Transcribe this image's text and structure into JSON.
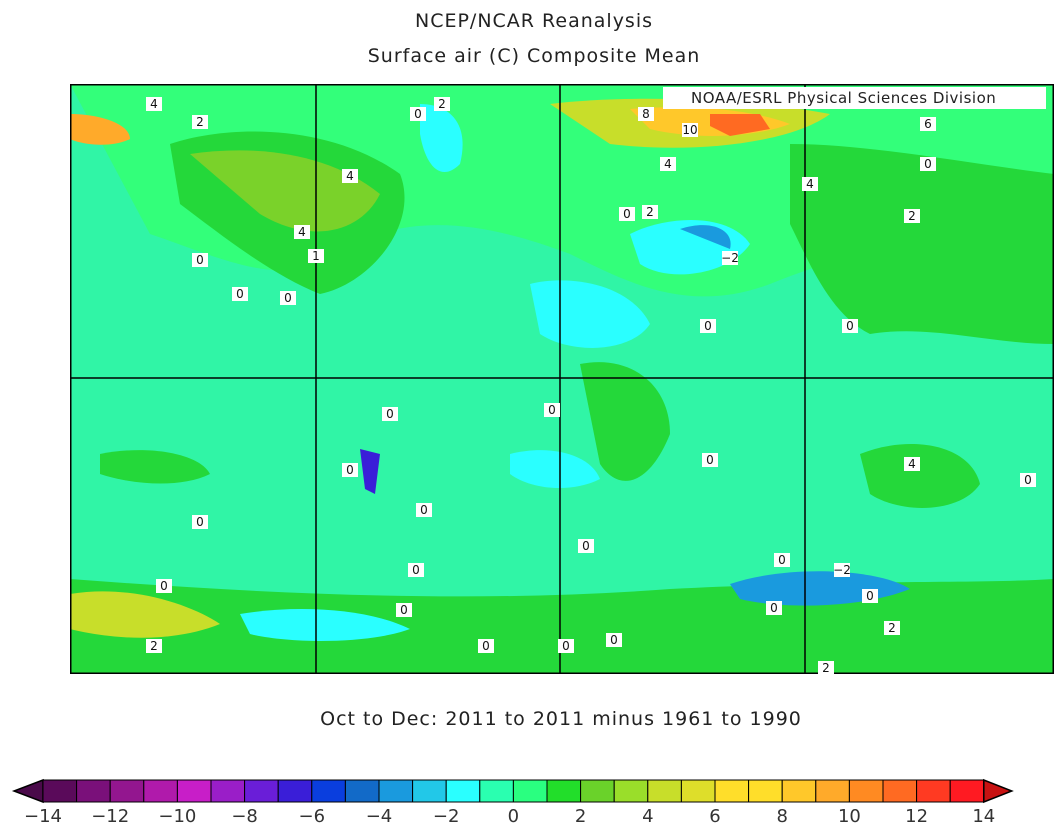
{
  "title": "NCEP/NCAR Reanalysis",
  "subtitle": "Surface air (C) Composite Mean",
  "credit": "NOAA/ESRL Physical Sciences Division",
  "period": "Oct to Dec: 2011 to 2011 minus 1961 to 1990",
  "colorbar": {
    "min": -14,
    "max": 14,
    "step": 1,
    "tick_labels": [
      "−14",
      "−12",
      "−10",
      "−8",
      "−6",
      "−4",
      "−2",
      "0",
      "2",
      "4",
      "6",
      "8",
      "10",
      "12",
      "14"
    ],
    "colors": [
      "#5a0a5a",
      "#7a107a",
      "#93168f",
      "#b01aab",
      "#c81ec8",
      "#9a1ec8",
      "#6a1ed8",
      "#3a1ed8",
      "#0a3ede",
      "#126ac8",
      "#1a9ade",
      "#22c8e8",
      "#2affff",
      "#2affb0",
      "#2aff80",
      "#22de2a",
      "#6ad22a",
      "#9ade2a",
      "#c8de2a",
      "#dede2a",
      "#ffde2a",
      "#ffde2a",
      "#ffc82a",
      "#ffaa2a",
      "#ff8a22",
      "#ff6a22",
      "#ff3a22",
      "#ff1a22"
    ],
    "under_color": "#4a0a4a",
    "over_color": "#c81212"
  },
  "contour_labels": [
    "4",
    "2",
    "0",
    "2",
    "4",
    "4",
    "1",
    "0",
    "0",
    "0",
    "8",
    "10",
    "4",
    "0",
    "2",
    "−2",
    "0",
    "4",
    "2",
    "6",
    "0",
    "0",
    "0",
    "0",
    "0",
    "0",
    "0",
    "0",
    "0",
    "0",
    "0",
    "0",
    "0",
    "0",
    "0",
    "0",
    "2",
    "0",
    "−2",
    "0",
    "2",
    "2",
    "4",
    "0"
  ]
}
